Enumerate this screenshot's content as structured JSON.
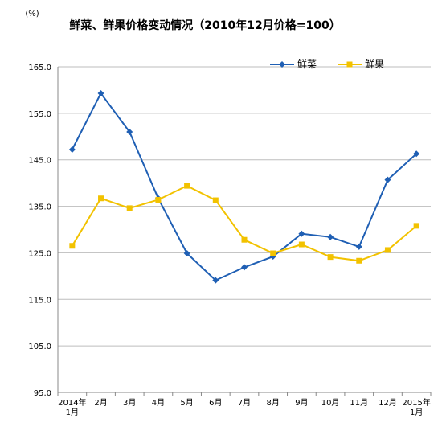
{
  "chart_data": {
    "type": "line",
    "title": "鲜菜、鲜果价格变动情况（2010年12月价格=100）",
    "ylabel": "(%)",
    "xlabel": "",
    "ylim": [
      95.0,
      165.0
    ],
    "yticks": [
      "165.0",
      "155.0",
      "145.0",
      "135.0",
      "125.0",
      "115.0",
      "105.0",
      "95.0"
    ],
    "ytick_values": [
      165,
      155,
      145,
      135,
      125,
      115,
      105,
      95
    ],
    "categories": [
      [
        "2014年",
        "1月"
      ],
      [
        "2月"
      ],
      [
        "3月"
      ],
      [
        "4月"
      ],
      [
        "5月"
      ],
      [
        "6月"
      ],
      [
        "7月"
      ],
      [
        "8月"
      ],
      [
        "9月"
      ],
      [
        "10月"
      ],
      [
        "11月"
      ],
      [
        "12月"
      ],
      [
        "2015年",
        "1月"
      ]
    ],
    "grid": "horizontal",
    "legend_position": "top-right",
    "series": [
      {
        "name": "鲜菜",
        "color": "#1F5FB4",
        "marker": "diamond",
        "values": [
          147.2,
          159.3,
          151.0,
          136.7,
          124.9,
          119.1,
          121.9,
          124.2,
          129.1,
          128.4,
          126.3,
          140.7,
          146.3
        ]
      },
      {
        "name": "鲜果",
        "color": "#F2C200",
        "marker": "square",
        "values": [
          126.5,
          136.7,
          134.6,
          136.4,
          139.4,
          136.3,
          127.8,
          124.9,
          126.8,
          124.1,
          123.3,
          125.6,
          130.8
        ]
      }
    ]
  }
}
